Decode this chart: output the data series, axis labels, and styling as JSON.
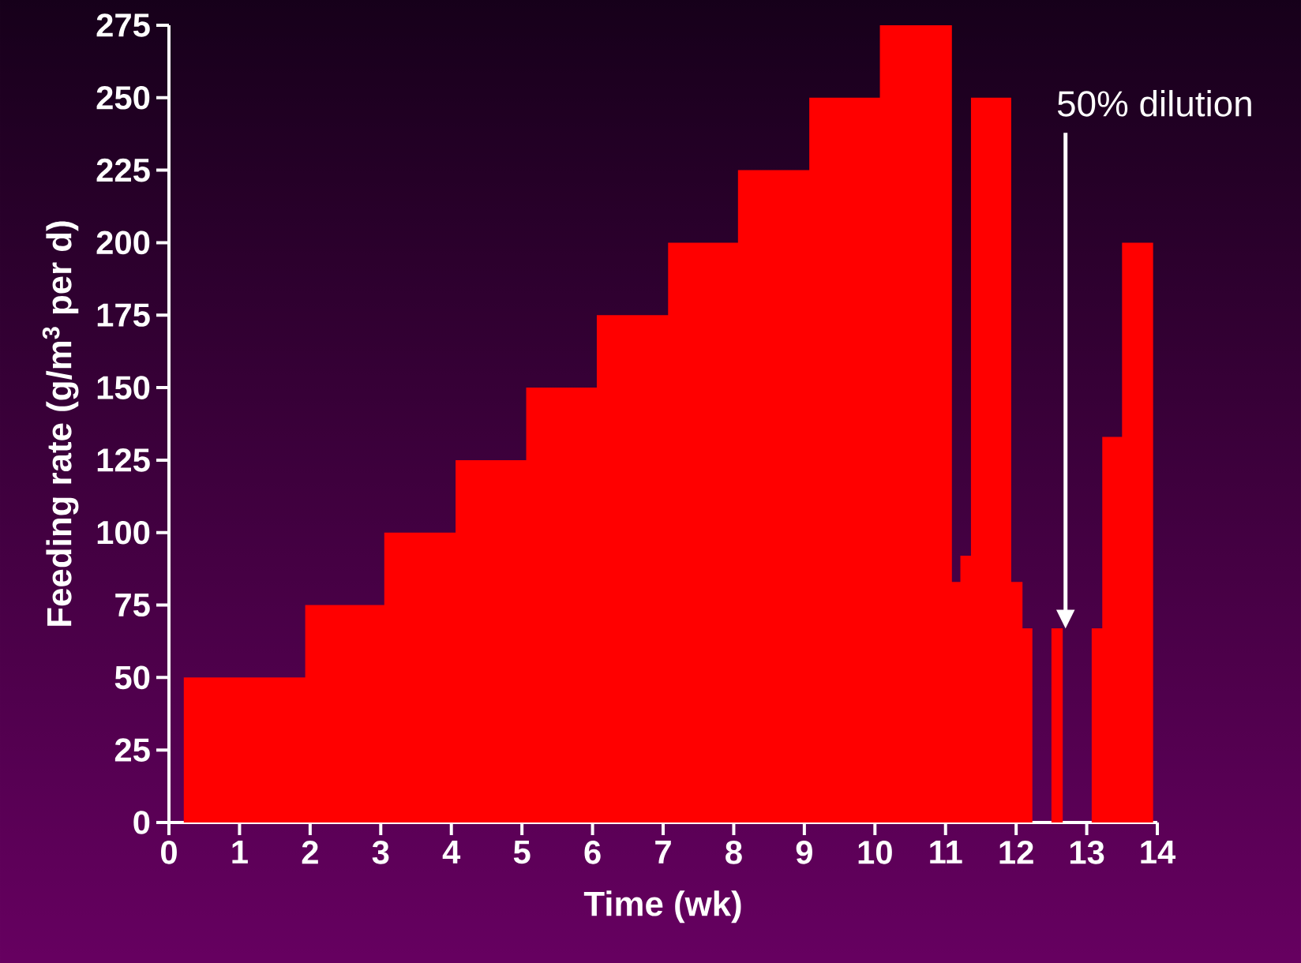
{
  "chart_data": {
    "type": "area",
    "xlabel": "Time (wk)",
    "ylabel": "Feeding rate (g/m$^{3}$ per d)",
    "x": [
      0.21,
      0.21,
      1.93,
      1.93,
      3.05,
      3.05,
      4.06,
      4.06,
      5.06,
      5.06,
      6.06,
      6.06,
      7.07,
      7.07,
      8.06,
      8.06,
      9.07,
      9.07,
      10.07,
      10.07,
      11.09,
      11.09,
      11.21,
      11.21,
      11.36,
      11.36,
      11.93,
      11.93,
      12.09,
      12.09,
      12.23,
      12.23,
      12.5,
      12.5,
      12.66,
      12.66,
      13.07,
      13.07,
      13.22,
      13.22,
      13.5,
      13.5,
      13.94,
      13.94
    ],
    "values": [
      0,
      50,
      50,
      75,
      75,
      100,
      100,
      125,
      125,
      150,
      150,
      175,
      175,
      200,
      200,
      225,
      225,
      250,
      250,
      275,
      275,
      83,
      83,
      92,
      92,
      250,
      250,
      83,
      83,
      67,
      67,
      0,
      0,
      67,
      67,
      0,
      0,
      67,
      67,
      133,
      133,
      200,
      200,
      0
    ],
    "color": "#ff0000",
    "xlim": [
      0,
      14
    ],
    "ylim": [
      0,
      275
    ],
    "xticks": [
      0,
      1,
      2,
      3,
      4,
      5,
      6,
      7,
      8,
      9,
      10,
      11,
      12,
      13,
      14
    ],
    "yticks": [
      0,
      25,
      50,
      75,
      100,
      125,
      150,
      175,
      200,
      225,
      250,
      275
    ],
    "grid": false,
    "annotations": [
      "50% dilution"
    ]
  }
}
